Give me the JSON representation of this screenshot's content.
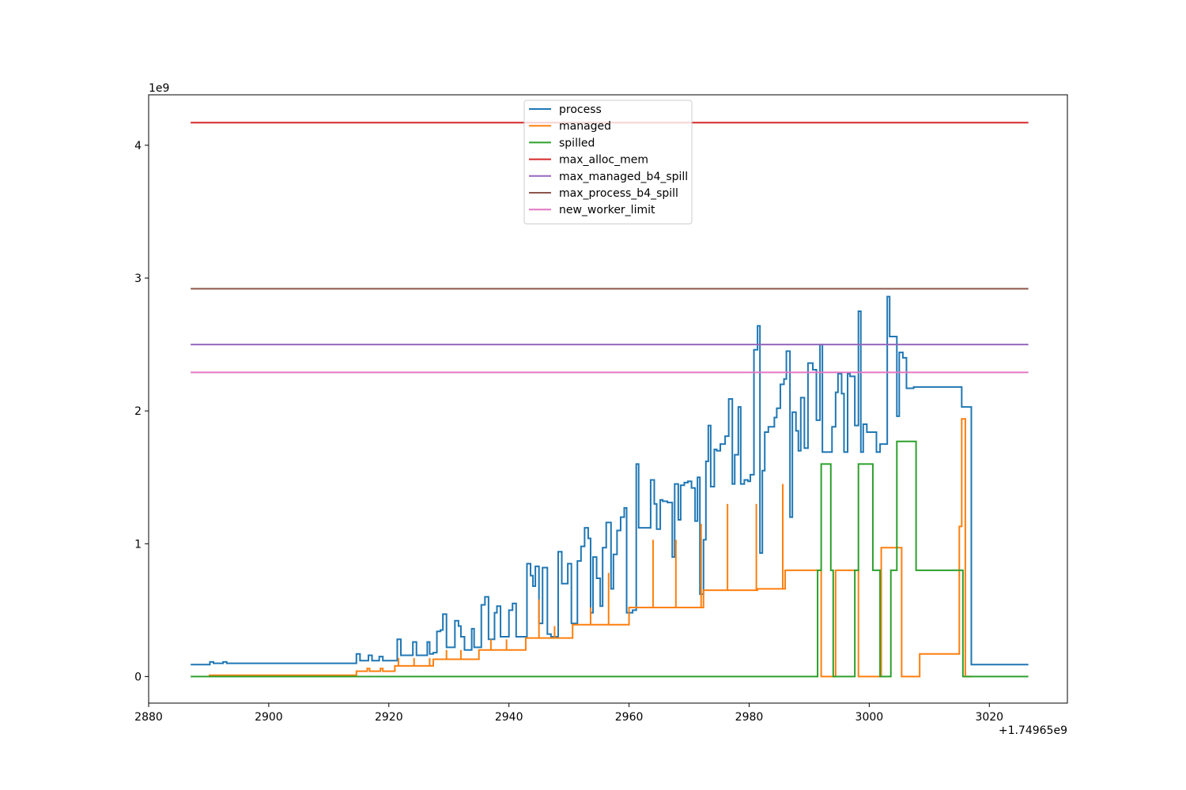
{
  "chart_data": {
    "type": "line",
    "step": true,
    "x_offset_label": "+1.74965e9",
    "y_scale_label": "1e9",
    "xlim": [
      2880,
      3033
    ],
    "ylim": [
      -0.2,
      4.38
    ],
    "xticks": [
      2880,
      2900,
      2920,
      2940,
      2960,
      2980,
      3000,
      3020
    ],
    "yticks": [
      0,
      1,
      2,
      3,
      4
    ],
    "grid": false,
    "legend": {
      "position": "top-center"
    },
    "series": [
      {
        "name": "process",
        "color": "#1f77b4",
        "points": [
          [
            2887,
            0.09
          ],
          [
            2890,
            0.09
          ],
          [
            2890.2,
            0.11
          ],
          [
            2890.8,
            0.1
          ],
          [
            2892,
            0.1
          ],
          [
            2892.4,
            0.11
          ],
          [
            2893,
            0.1
          ],
          [
            2911,
            0.1
          ],
          [
            2914,
            0.1
          ],
          [
            2914.6,
            0.17
          ],
          [
            2915.2,
            0.12
          ],
          [
            2916.6,
            0.16
          ],
          [
            2917.2,
            0.12
          ],
          [
            2918,
            0.12
          ],
          [
            2918.4,
            0.15
          ],
          [
            2919,
            0.12
          ],
          [
            2921,
            0.12
          ],
          [
            2921.4,
            0.28
          ],
          [
            2922,
            0.16
          ],
          [
            2923.6,
            0.16
          ],
          [
            2924,
            0.26
          ],
          [
            2924.6,
            0.16
          ],
          [
            2926,
            0.16
          ],
          [
            2926.4,
            0.26
          ],
          [
            2926.8,
            0.17
          ],
          [
            2927.4,
            0.18
          ],
          [
            2928,
            0.34
          ],
          [
            2928.6,
            0.35
          ],
          [
            2929,
            0.47
          ],
          [
            2929.6,
            0.22
          ],
          [
            2930.6,
            0.22
          ],
          [
            2931,
            0.42
          ],
          [
            2931.6,
            0.38
          ],
          [
            2932,
            0.3
          ],
          [
            2932.6,
            0.2
          ],
          [
            2933.4,
            0.2
          ],
          [
            2933.8,
            0.36
          ],
          [
            2934.2,
            0.22
          ],
          [
            2934.8,
            0.22
          ],
          [
            2935.4,
            0.54
          ],
          [
            2936,
            0.6
          ],
          [
            2936.6,
            0.28
          ],
          [
            2937.2,
            0.28
          ],
          [
            2937.6,
            0.48
          ],
          [
            2938,
            0.53
          ],
          [
            2938.6,
            0.3
          ],
          [
            2939.4,
            0.3
          ],
          [
            2940,
            0.5
          ],
          [
            2940.6,
            0.55
          ],
          [
            2941.2,
            0.3
          ],
          [
            2942.6,
            0.3
          ],
          [
            2943,
            0.85
          ],
          [
            2943.6,
            0.76
          ],
          [
            2944,
            0.68
          ],
          [
            2944.4,
            0.83
          ],
          [
            2945,
            0.4
          ],
          [
            2945.6,
            0.82
          ],
          [
            2946.4,
            0.32
          ],
          [
            2947,
            0.3
          ],
          [
            2947.6,
            0.3
          ],
          [
            2948.2,
            0.94
          ],
          [
            2948.8,
            0.7
          ],
          [
            2949.4,
            0.7
          ],
          [
            2949.8,
            0.85
          ],
          [
            2950.4,
            0.4
          ],
          [
            2951,
            0.4
          ],
          [
            2951.4,
            0.87
          ],
          [
            2952,
            0.98
          ],
          [
            2952.6,
            1.12
          ],
          [
            2953.2,
            1.04
          ],
          [
            2953.6,
            0.48
          ],
          [
            2954,
            0.9
          ],
          [
            2954.6,
            0.74
          ],
          [
            2955.2,
            0.53
          ],
          [
            2955.6,
            0.97
          ],
          [
            2956.2,
            1.16
          ],
          [
            2957,
            0.66
          ],
          [
            2957.4,
            0.92
          ],
          [
            2958,
            1.1
          ],
          [
            2958.6,
            1.2
          ],
          [
            2959.2,
            1.27
          ],
          [
            2959.6,
            0.48
          ],
          [
            2960.6,
            0.5
          ],
          [
            2961.2,
            1.6
          ],
          [
            2961.6,
            1.12
          ],
          [
            2962.6,
            1.12
          ],
          [
            2963.6,
            1.48
          ],
          [
            2964.2,
            1.3
          ],
          [
            2964.6,
            1.11
          ],
          [
            2965.2,
            1.33
          ],
          [
            2965.6,
            1.32
          ],
          [
            2966.4,
            1.31
          ],
          [
            2967.2,
            0.9
          ],
          [
            2967.6,
            1.45
          ],
          [
            2968.2,
            1.18
          ],
          [
            2968.6,
            1.44
          ],
          [
            2969.2,
            1.46
          ],
          [
            2969.8,
            1.47
          ],
          [
            2970.4,
            1.42
          ],
          [
            2971,
            1.17
          ],
          [
            2971.4,
            1.5
          ],
          [
            2971.8,
            0.62
          ],
          [
            2972.4,
            1.03
          ],
          [
            2972.8,
            1.62
          ],
          [
            2973.2,
            1.89
          ],
          [
            2973.6,
            1.43
          ],
          [
            2974.2,
            1.71
          ],
          [
            2974.6,
            1.7
          ],
          [
            2975.2,
            1.75
          ],
          [
            2976,
            1.81
          ],
          [
            2976.6,
            2.09
          ],
          [
            2977.2,
            1.45
          ],
          [
            2977.6,
            1.67
          ],
          [
            2978.2,
            2.03
          ],
          [
            2978.6,
            1.45
          ],
          [
            2979.2,
            1.48
          ],
          [
            2979.8,
            1.47
          ],
          [
            2980.2,
            1.52
          ],
          [
            2980.8,
            2.46
          ],
          [
            2981.4,
            2.64
          ],
          [
            2981.8,
            0.93
          ],
          [
            2982.2,
            1.55
          ],
          [
            2982.6,
            1.84
          ],
          [
            2983.2,
            1.88
          ],
          [
            2983.8,
            1.88
          ],
          [
            2984.2,
            1.95
          ],
          [
            2984.6,
            2.02
          ],
          [
            2985.2,
            2.2
          ],
          [
            2985.8,
            2.24
          ],
          [
            2986.2,
            2.45
          ],
          [
            2986.8,
            1.2
          ],
          [
            2987.2,
            1.99
          ],
          [
            2987.8,
            1.85
          ],
          [
            2988.2,
            1.7
          ],
          [
            2988.6,
            2.1
          ],
          [
            2989.2,
            1.72
          ],
          [
            2989.8,
            2.36
          ],
          [
            2990.6,
            2.31
          ],
          [
            2991.2,
            1.93
          ],
          [
            2991.8,
            2.5
          ],
          [
            2992.2,
            1.69
          ],
          [
            2993.2,
            1.69
          ],
          [
            2993.8,
            1.88
          ],
          [
            2994.4,
            2.14
          ],
          [
            2994.8,
            2.28
          ],
          [
            2995.4,
            2.13
          ],
          [
            2995.8,
            1.69
          ],
          [
            2996.4,
            2.28
          ],
          [
            2996.8,
            2.26
          ],
          [
            2997.6,
            1.89
          ],
          [
            2998.2,
            2.75
          ],
          [
            2998.6,
            1.69
          ],
          [
            2999,
            1.9
          ],
          [
            2999.6,
            1.84
          ],
          [
            3001.2,
            1.69
          ],
          [
            3001.8,
            1.75
          ],
          [
            3002.4,
            1.75
          ],
          [
            3003,
            2.86
          ],
          [
            3003.4,
            2.56
          ],
          [
            3004.6,
            1.96
          ],
          [
            3005,
            2.44
          ],
          [
            3005.6,
            2.4
          ],
          [
            3006.2,
            2.17
          ],
          [
            3007.4,
            2.18
          ],
          [
            3008,
            2.18
          ],
          [
            3015,
            2.18
          ],
          [
            3015.4,
            2.03
          ],
          [
            3016.6,
            2.03
          ],
          [
            3017,
            0.09
          ],
          [
            3026.5,
            0.09
          ]
        ]
      },
      {
        "name": "managed",
        "color": "#ff7f0e",
        "points": [
          [
            2890,
            0.01
          ],
          [
            2914.2,
            0.01
          ],
          [
            2914.6,
            0.04
          ],
          [
            2916,
            0.04
          ],
          [
            2916.4,
            0.06
          ],
          [
            2916.8,
            0.04
          ],
          [
            2918.2,
            0.04
          ],
          [
            2918.6,
            0.06
          ],
          [
            2919,
            0.04
          ],
          [
            2920.6,
            0.04
          ],
          [
            2921,
            0.08
          ],
          [
            2927,
            0.08
          ],
          [
            2927.4,
            0.13
          ],
          [
            2934.6,
            0.13
          ],
          [
            2935,
            0.2
          ],
          [
            2942.4,
            0.2
          ],
          [
            2942.8,
            0.29
          ],
          [
            2950.2,
            0.29
          ],
          [
            2950.6,
            0.39
          ],
          [
            2959.6,
            0.39
          ],
          [
            2960,
            0.52
          ],
          [
            2972,
            0.52
          ],
          [
            2972.4,
            0.65
          ],
          [
            2981,
            0.65
          ],
          [
            2981.4,
            0.66
          ],
          [
            2985.6,
            0.66
          ],
          [
            2986,
            0.8
          ],
          [
            2991.6,
            0.8
          ],
          [
            2992,
            0.0
          ],
          [
            2994,
            0.0
          ],
          [
            2994.4,
            0.8
          ],
          [
            2997.8,
            0.8
          ],
          [
            2998.2,
            0.0
          ],
          [
            3001.6,
            0.0
          ],
          [
            3002,
            0.97
          ],
          [
            3005,
            0.97
          ],
          [
            3005.4,
            0.0
          ],
          [
            3008,
            0.0
          ],
          [
            3008.4,
            0.17
          ],
          [
            3014.6,
            0.17
          ],
          [
            3015,
            1.13
          ],
          [
            3015.4,
            1.94
          ],
          [
            3016,
            0.0
          ],
          [
            3017,
            0.0
          ]
        ],
        "spikes": [
          [
            2945,
            0.58
          ],
          [
            2953.6,
            0.52
          ],
          [
            2956.6,
            0.78
          ],
          [
            2964,
            1.03
          ],
          [
            2967.8,
            1.03
          ],
          [
            2972,
            1.15
          ],
          [
            2976.4,
            1.3
          ],
          [
            2981.2,
            1.3
          ],
          [
            2985.6,
            1.45
          ],
          [
            2991.6,
            0.8
          ],
          [
            2997.8,
            0.8
          ],
          [
            3003.2,
            0.97
          ],
          [
            2921.6,
            0.14
          ],
          [
            2924.2,
            0.14
          ],
          [
            2926.8,
            0.14
          ],
          [
            2929.6,
            0.2
          ],
          [
            2932,
            0.2
          ],
          [
            2937,
            0.28
          ],
          [
            2939.6,
            0.28
          ],
          [
            2947.6,
            0.38
          ]
        ]
      },
      {
        "name": "spilled",
        "color": "#2ca02c",
        "points": [
          [
            2887,
            0.0
          ],
          [
            2991,
            0.0
          ],
          [
            2991.4,
            0.8
          ],
          [
            2992,
            1.6
          ],
          [
            2993.6,
            0.8
          ],
          [
            2994,
            0.0
          ],
          [
            2997.2,
            0.0
          ],
          [
            2997.6,
            0.8
          ],
          [
            2998.2,
            1.6
          ],
          [
            3000.6,
            0.8
          ],
          [
            3001.8,
            0.0
          ],
          [
            3003.2,
            0.0
          ],
          [
            3003.6,
            0.8
          ],
          [
            3004.6,
            1.77
          ],
          [
            3007.8,
            0.8
          ],
          [
            3015.2,
            0.8
          ],
          [
            3015.6,
            0.0
          ],
          [
            3026.5,
            0.0
          ]
        ]
      },
      {
        "name": "max_alloc_mem",
        "color": "#d62728",
        "constant": 4.17,
        "x_range": [
          2887,
          3026.5
        ]
      },
      {
        "name": "max_managed_b4_spill",
        "color": "#9467bd",
        "constant": 2.5,
        "x_range": [
          2887,
          3026.5
        ]
      },
      {
        "name": "max_process_b4_spill",
        "color": "#8c564b",
        "constant": 2.92,
        "x_range": [
          2887,
          3026.5
        ]
      },
      {
        "name": "new_worker_limit",
        "color": "#e377c2",
        "constant": 2.29,
        "x_range": [
          2887,
          3026.5
        ]
      }
    ]
  }
}
